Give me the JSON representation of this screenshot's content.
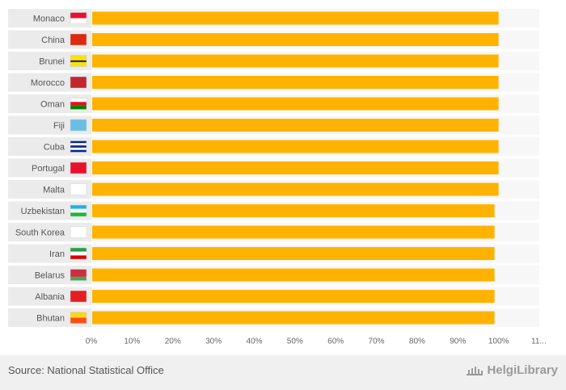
{
  "chart_data": {
    "type": "bar",
    "orientation": "horizontal",
    "categories": [
      "Monaco",
      "China",
      "Brunei",
      "Morocco",
      "Oman",
      "Fiji",
      "Cuba",
      "Portugal",
      "Malta",
      "Uzbekistan",
      "South Korea",
      "Iran",
      "Belarus",
      "Albania",
      "Bhutan"
    ],
    "values": [
      100,
      100,
      100,
      100,
      100,
      100,
      100,
      100,
      100,
      99,
      99,
      99,
      99,
      99,
      99
    ],
    "xticks": [
      "0%",
      "10%",
      "20%",
      "30%",
      "40%",
      "50%",
      "60%",
      "70%",
      "80%",
      "90%",
      "100%",
      "11..."
    ],
    "xlim": [
      0,
      110
    ],
    "bar_color": "#ffb300",
    "row_band_color": "#ebebeb",
    "title": "",
    "xlabel": "",
    "ylabel": "",
    "grid": false,
    "legend": "none"
  },
  "footer": {
    "source": "Source: National Statistical Office",
    "logo": "HelgiLibrary"
  }
}
